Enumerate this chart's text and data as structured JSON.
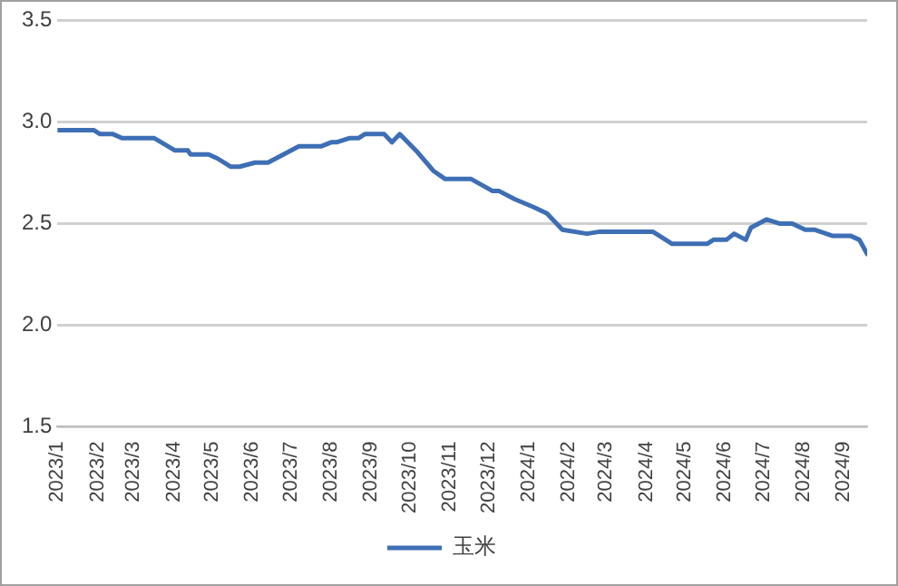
{
  "chart_data": {
    "type": "line",
    "x": [
      "2023-01-01",
      "2023-01-29",
      "2023-02-03",
      "2023-02-13",
      "2023-02-20",
      "2023-03-17",
      "2023-04-02",
      "2023-04-12",
      "2023-04-14",
      "2023-04-28",
      "2023-05-05",
      "2023-05-15",
      "2023-05-22",
      "2023-06-03",
      "2023-06-13",
      "2023-06-28",
      "2023-07-07",
      "2023-07-24",
      "2023-08-01",
      "2023-08-05",
      "2023-08-15",
      "2023-08-22",
      "2023-08-27",
      "2023-09-11",
      "2023-09-17",
      "2023-09-23",
      "2023-10-07",
      "2023-10-19",
      "2023-10-28",
      "2023-11-17",
      "2023-12-04",
      "2023-12-09",
      "2023-12-21",
      "2024-01-05",
      "2024-01-15",
      "2024-01-27",
      "2024-02-15",
      "2024-02-25",
      "2024-04-06",
      "2024-04-21",
      "2024-05-18",
      "2024-05-23",
      "2024-06-02",
      "2024-06-08",
      "2024-06-17",
      "2024-06-21",
      "2024-07-03",
      "2024-07-13",
      "2024-07-23",
      "2024-08-02",
      "2024-08-09",
      "2024-08-23",
      "2024-09-06",
      "2024-09-13",
      "2024-09-19"
    ],
    "series": [
      {
        "name": "玉米",
        "color": "#3e6fb5",
        "values": [
          2.96,
          2.96,
          2.94,
          2.94,
          2.92,
          2.92,
          2.86,
          2.86,
          2.84,
          2.84,
          2.82,
          2.78,
          2.78,
          2.8,
          2.8,
          2.85,
          2.88,
          2.88,
          2.9,
          2.9,
          2.92,
          2.92,
          2.94,
          2.94,
          2.9,
          2.94,
          2.85,
          2.76,
          2.72,
          2.72,
          2.66,
          2.66,
          2.62,
          2.58,
          2.55,
          2.47,
          2.45,
          2.46,
          2.46,
          2.4,
          2.4,
          2.42,
          2.42,
          2.45,
          2.42,
          2.48,
          2.52,
          2.5,
          2.5,
          2.47,
          2.47,
          2.44,
          2.44,
          2.42,
          2.35
        ]
      }
    ],
    "xlim": [
      "2023-01-01",
      "2024-09-19"
    ],
    "xticks": [
      {
        "value": "2023-01-01",
        "label": "2023/1"
      },
      {
        "value": "2023-02-01",
        "label": "2023/2"
      },
      {
        "value": "2023-03-01",
        "label": "2023/3"
      },
      {
        "value": "2023-04-01",
        "label": "2023/4"
      },
      {
        "value": "2023-05-01",
        "label": "2023/5"
      },
      {
        "value": "2023-06-01",
        "label": "2023/6"
      },
      {
        "value": "2023-07-01",
        "label": "2023/7"
      },
      {
        "value": "2023-08-01",
        "label": "2023/8"
      },
      {
        "value": "2023-09-01",
        "label": "2023/9"
      },
      {
        "value": "2023-10-01",
        "label": "2023/10"
      },
      {
        "value": "2023-11-01",
        "label": "2023/11"
      },
      {
        "value": "2023-12-01",
        "label": "2023/12"
      },
      {
        "value": "2024-01-01",
        "label": "2024/1"
      },
      {
        "value": "2024-02-01",
        "label": "2024/2"
      },
      {
        "value": "2024-03-01",
        "label": "2024/3"
      },
      {
        "value": "2024-04-01",
        "label": "2024/4"
      },
      {
        "value": "2024-05-01",
        "label": "2024/5"
      },
      {
        "value": "2024-06-01",
        "label": "2024/6"
      },
      {
        "value": "2024-07-01",
        "label": "2024/7"
      },
      {
        "value": "2024-08-01",
        "label": "2024/8"
      },
      {
        "value": "2024-09-01",
        "label": "2024/9"
      }
    ],
    "ylim": [
      1.5,
      3.5
    ],
    "yticks": [
      {
        "value": 1.5,
        "label": "1.5"
      },
      {
        "value": 2,
        "label": "2.0"
      },
      {
        "value": 2.5,
        "label": "2.5"
      },
      {
        "value": 3,
        "label": "3.0"
      },
      {
        "value": 3.5,
        "label": "3.5"
      }
    ],
    "grid": "y",
    "legend": "bottom",
    "marker": "none",
    "line_style": "solid"
  }
}
